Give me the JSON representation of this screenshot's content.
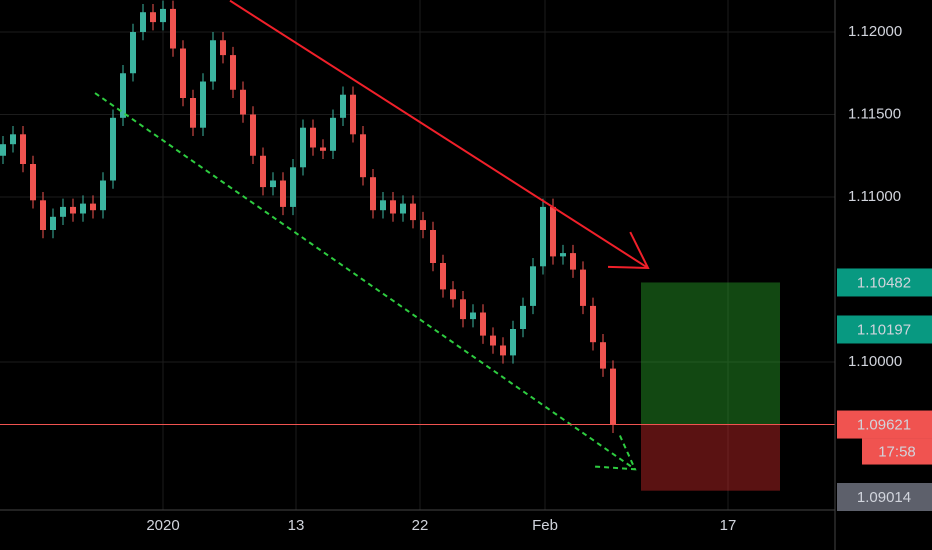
{
  "chart_data": {
    "type": "candlestick",
    "grid": true,
    "up_color": "#3cb4a0",
    "down_color": "#ef5350",
    "xlim": [
      -0.3,
      83.2
    ],
    "ylim": [
      1.09103,
      1.12194
    ],
    "xticks": [
      {
        "value": 16,
        "label": "2020"
      },
      {
        "value": 29.3,
        "label": "13"
      },
      {
        "value": 41.7,
        "label": "22"
      },
      {
        "value": 54.2,
        "label": "Feb"
      },
      {
        "value": 72.5,
        "label": "17"
      }
    ],
    "yticks": [
      {
        "value": 1.12,
        "label": "1.12000"
      },
      {
        "value": 1.115,
        "label": "1.11500"
      },
      {
        "value": 1.11,
        "label": "1.11000"
      },
      {
        "value": 1.1,
        "label": "1.10000"
      }
    ],
    "open": [
      1.1125,
      1.1132,
      1.1138,
      1.112,
      1.1098,
      1.108,
      1.1088,
      1.1094,
      1.109,
      1.1096,
      1.1092,
      1.111,
      1.1148,
      1.1175,
      1.12,
      1.1212,
      1.1206,
      1.1214,
      1.119,
      1.116,
      1.1142,
      1.117,
      1.1195,
      1.1186,
      1.1165,
      1.115,
      1.1125,
      1.1106,
      1.111,
      1.1094,
      1.1118,
      1.1142,
      1.113,
      1.1128,
      1.1148,
      1.1162,
      1.1138,
      1.1112,
      1.1092,
      1.1098,
      1.109,
      1.1096,
      1.1086,
      1.108,
      1.106,
      1.1044,
      1.1038,
      1.1026,
      1.103,
      1.1016,
      1.101,
      1.1004,
      1.102,
      1.1034,
      1.1058,
      1.1094,
      1.1064,
      1.1066,
      1.1056,
      1.1034,
      1.1012,
      1.0996
    ],
    "high": [
      1.1137,
      1.1143,
      1.1143,
      1.1125,
      1.1103,
      1.1093,
      1.1099,
      1.1099,
      1.1101,
      1.1101,
      1.1115,
      1.1153,
      1.118,
      1.1205,
      1.1217,
      1.1217,
      1.1219,
      1.1219,
      1.1195,
      1.1165,
      1.1175,
      1.12,
      1.12,
      1.1191,
      1.117,
      1.1155,
      1.113,
      1.1115,
      1.1115,
      1.1123,
      1.1147,
      1.1147,
      1.1135,
      1.1153,
      1.1167,
      1.1167,
      1.1143,
      1.1117,
      1.1103,
      1.1103,
      1.1101,
      1.1101,
      1.1091,
      1.1085,
      1.1065,
      1.1049,
      1.1043,
      1.1035,
      1.1035,
      1.1021,
      1.1015,
      1.1025,
      1.1039,
      1.1063,
      1.1099,
      1.1099,
      1.1071,
      1.1071,
      1.1061,
      1.1039,
      1.1017,
      1.1001
    ],
    "low": [
      1.112,
      1.1127,
      1.1115,
      1.1093,
      1.1075,
      1.1075,
      1.1083,
      1.1085,
      1.1085,
      1.1087,
      1.1087,
      1.1105,
      1.1143,
      1.117,
      1.1195,
      1.1201,
      1.1201,
      1.1185,
      1.1155,
      1.1137,
      1.1137,
      1.1165,
      1.1181,
      1.116,
      1.1145,
      1.112,
      1.1101,
      1.1101,
      1.1089,
      1.1089,
      1.1113,
      1.1125,
      1.1123,
      1.1123,
      1.1143,
      1.1133,
      1.1107,
      1.1087,
      1.1087,
      1.1085,
      1.1085,
      1.1081,
      1.1075,
      1.1055,
      1.1039,
      1.1033,
      1.1021,
      1.1021,
      1.1011,
      1.1005,
      1.0999,
      1.0999,
      1.1015,
      1.1029,
      1.1053,
      1.1059,
      1.1059,
      1.1051,
      1.1029,
      1.1007,
      1.0991,
      1.0957
    ],
    "close": [
      1.1132,
      1.1138,
      1.112,
      1.1098,
      1.108,
      1.1088,
      1.1094,
      1.109,
      1.1096,
      1.1092,
      1.111,
      1.1148,
      1.1175,
      1.12,
      1.1212,
      1.1206,
      1.1214,
      1.119,
      1.116,
      1.1142,
      1.117,
      1.1195,
      1.1186,
      1.1165,
      1.115,
      1.1125,
      1.1106,
      1.111,
      1.1094,
      1.1118,
      1.1142,
      1.113,
      1.1128,
      1.1148,
      1.1162,
      1.1138,
      1.1112,
      1.1092,
      1.1098,
      1.109,
      1.1096,
      1.1086,
      1.108,
      1.106,
      1.1044,
      1.1038,
      1.1026,
      1.103,
      1.1016,
      1.101,
      1.1004,
      1.102,
      1.1034,
      1.1058,
      1.1094,
      1.1064,
      1.1066,
      1.1056,
      1.1034,
      1.1012,
      1.0996,
      1.0962
    ],
    "lines": [
      {
        "color": "#f0202a",
        "style": "solid",
        "x": [
          22.7,
          64.5
        ],
        "y": [
          1.1219,
          1.1057
        ]
      },
      {
        "color": "#2ecc40",
        "style": "dashed",
        "x": [
          9.2,
          63.2
        ],
        "y": [
          1.1163,
          1.0935
        ]
      }
    ],
    "position": {
      "x": [
        63.8,
        77.7
      ],
      "entry": 1.09621,
      "target": 1.10482,
      "stop": 1.0922
    },
    "price_labels": [
      {
        "value": 1.10482,
        "color": "#089981"
      },
      {
        "value": 1.10197,
        "color": "#089981"
      },
      {
        "value": 1.09621,
        "color": "#f05350"
      },
      {
        "value": 1.09014,
        "color": "#5d606b"
      }
    ],
    "countdown": "17:58"
  }
}
